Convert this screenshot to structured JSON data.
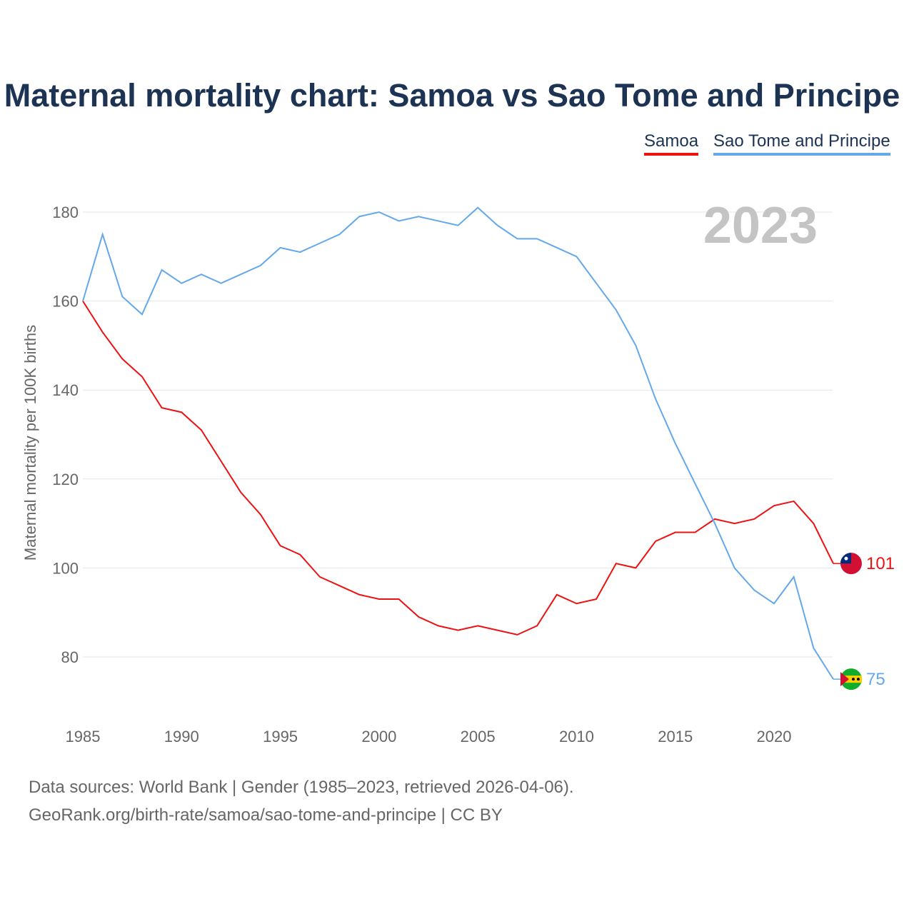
{
  "chart_data": {
    "type": "line",
    "title": "Maternal mortality chart: Samoa vs Sao Tome and Principe",
    "ylabel": "Maternal mortality per 100K births",
    "xlabel": "",
    "year_label": "2023",
    "xlim": [
      1985,
      2023
    ],
    "ylim": [
      70,
      185
    ],
    "xticks": [
      1985,
      1990,
      1995,
      2000,
      2005,
      2010,
      2015,
      2020
    ],
    "yticks": [
      80,
      100,
      120,
      140,
      160,
      180
    ],
    "grid": true,
    "legend_position": "top-right",
    "x": [
      1985,
      1986,
      1987,
      1988,
      1989,
      1990,
      1991,
      1992,
      1993,
      1994,
      1995,
      1996,
      1997,
      1998,
      1999,
      2000,
      2001,
      2002,
      2003,
      2004,
      2005,
      2006,
      2007,
      2008,
      2009,
      2010,
      2011,
      2012,
      2013,
      2014,
      2015,
      2016,
      2017,
      2018,
      2019,
      2020,
      2021,
      2022,
      2023
    ],
    "series": [
      {
        "name": "Samoa",
        "color": "#ee1111",
        "end_label": "101",
        "values": [
          160,
          153,
          147,
          143,
          136,
          135,
          131,
          124,
          117,
          112,
          105,
          103,
          98,
          96,
          94,
          93,
          93,
          89,
          87,
          86,
          87,
          86,
          85,
          87,
          94,
          92,
          93,
          101,
          100,
          106,
          108,
          108,
          111,
          110,
          111,
          114,
          115,
          110,
          101
        ]
      },
      {
        "name": "Sao Tome and Principe",
        "color": "#64a8ea",
        "end_label": "75",
        "values": [
          160,
          175,
          161,
          157,
          167,
          164,
          166,
          164,
          166,
          168,
          172,
          171,
          173,
          175,
          179,
          180,
          178,
          179,
          178,
          177,
          181,
          177,
          174,
          174,
          172,
          170,
          164,
          158,
          150,
          138,
          128,
          119,
          110,
          100,
          95,
          92,
          98,
          82,
          75
        ]
      }
    ]
  },
  "source_line1": "Data sources: World Bank | Gender (1985–2023, retrieved 2026-04-06).",
  "source_line2": "GeoRank.org/birth-rate/samoa/sao-tome-and-principe | CC BY"
}
